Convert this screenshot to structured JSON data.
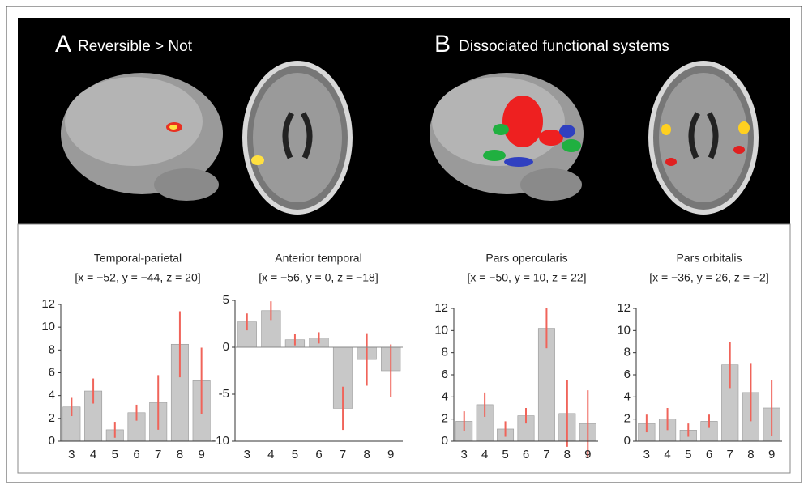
{
  "panels": [
    {
      "letter": "A",
      "title": "Reversible > Not"
    },
    {
      "letter": "B",
      "title": "Dissociated functional systems"
    }
  ],
  "chart_data": [
    {
      "type": "bar",
      "title": "Temporal-parietal",
      "subtitle": "[x = −52, y = −44, z = 20]",
      "categories": [
        "3",
        "4",
        "5",
        "6",
        "7",
        "8",
        "9"
      ],
      "values": [
        3.0,
        4.4,
        1.0,
        2.5,
        3.4,
        8.5,
        5.3
      ],
      "errors": [
        0.8,
        1.1,
        0.7,
        0.7,
        2.4,
        2.9,
        2.9
      ],
      "color": "#c8c8c8",
      "error_color": "#f0645a",
      "ylim": [
        0,
        12
      ],
      "yticks": [
        0,
        2,
        4,
        6,
        8,
        10,
        12
      ]
    },
    {
      "type": "bar",
      "title": "Anterior temporal",
      "subtitle": "[x = −56, y = 0, z = −18]",
      "categories": [
        "3",
        "4",
        "5",
        "6",
        "7",
        "8",
        "9"
      ],
      "values": [
        2.7,
        3.9,
        0.8,
        1.0,
        -6.5,
        -1.3,
        -2.5
      ],
      "errors": [
        0.9,
        1.0,
        0.6,
        0.6,
        2.3,
        2.8,
        2.8
      ],
      "color": "#c8c8c8",
      "error_color": "#f0645a",
      "ylim": [
        -10,
        5
      ],
      "yticks": [
        -10,
        -5,
        0,
        5
      ]
    },
    {
      "type": "bar",
      "title": "Pars opercularis",
      "subtitle": "[x = −50, y = 10, z = 22]",
      "categories": [
        "3",
        "4",
        "5",
        "6",
        "7",
        "8",
        "9"
      ],
      "values": [
        1.8,
        3.3,
        1.1,
        2.3,
        10.2,
        2.5,
        1.6
      ],
      "errors": [
        0.9,
        1.1,
        0.7,
        0.7,
        1.8,
        3.0,
        3.0
      ],
      "color": "#c8c8c8",
      "error_color": "#f0645a",
      "ylim": [
        0,
        12
      ],
      "yticks": [
        0,
        2,
        4,
        6,
        8,
        10,
        12
      ]
    },
    {
      "type": "bar",
      "title": "Pars orbitalis",
      "subtitle": "[x = −36, y = 26, z = −2]",
      "categories": [
        "3",
        "4",
        "5",
        "6",
        "7",
        "8",
        "9"
      ],
      "values": [
        1.6,
        2.0,
        1.0,
        1.8,
        6.9,
        4.4,
        3.0
      ],
      "errors": [
        0.8,
        1.0,
        0.6,
        0.6,
        2.1,
        2.6,
        2.5
      ],
      "color": "#c8c8c8",
      "error_color": "#f0645a",
      "ylim": [
        0,
        12
      ],
      "yticks": [
        0,
        2,
        4,
        6,
        8,
        10,
        12
      ]
    }
  ]
}
